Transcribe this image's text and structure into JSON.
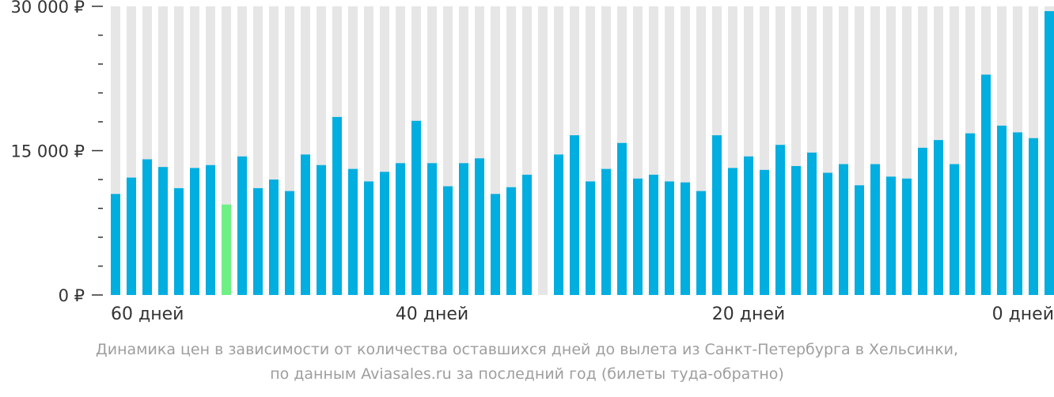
{
  "chart_data": {
    "type": "bar",
    "title": "",
    "xlabel": "",
    "ylabel": "",
    "ylim": [
      0,
      30000
    ],
    "y_ticks": [
      {
        "value": 0,
        "label": "0 ₽"
      },
      {
        "value": 15000,
        "label": "15 000 ₽"
      },
      {
        "value": 30000,
        "label": "30 000 ₽"
      }
    ],
    "y_minor_step": 3000,
    "x_tick_labels": [
      {
        "index": 0,
        "label": "60 дней"
      },
      {
        "index": 20,
        "label": "40 дней"
      },
      {
        "index": 40,
        "label": "20 дней"
      },
      {
        "index": 60,
        "label": "0 дней"
      }
    ],
    "values": [
      10500,
      12200,
      14100,
      13300,
      11100,
      13200,
      13500,
      9400,
      14400,
      11100,
      12000,
      10800,
      14600,
      13500,
      18500,
      13100,
      11800,
      12800,
      13700,
      18100,
      13700,
      11300,
      13700,
      14200,
      10500,
      11200,
      12500,
      null,
      14600,
      16600,
      11800,
      13100,
      15800,
      12100,
      12500,
      11800,
      11700,
      10800,
      16600,
      13200,
      14400,
      13000,
      15600,
      13400,
      14800,
      12700,
      13600,
      11400,
      13600,
      12300,
      12100,
      15300,
      16100,
      13600,
      16800,
      22900,
      17600,
      16900,
      16300,
      29500
    ],
    "highlight_index": 7,
    "colors": {
      "bar": "#00aee0",
      "highlight": "#6ef085",
      "background_column": "#e6e6e6"
    },
    "grid": false,
    "legend": "none"
  },
  "caption": {
    "line1": "Динамика цен в зависимости от количества оставшихся дней до вылета из Санкт-Петербурга в Хельсинки,",
    "line2": "по данным Aviasales.ru за последний год (билеты туда-обратно)"
  }
}
